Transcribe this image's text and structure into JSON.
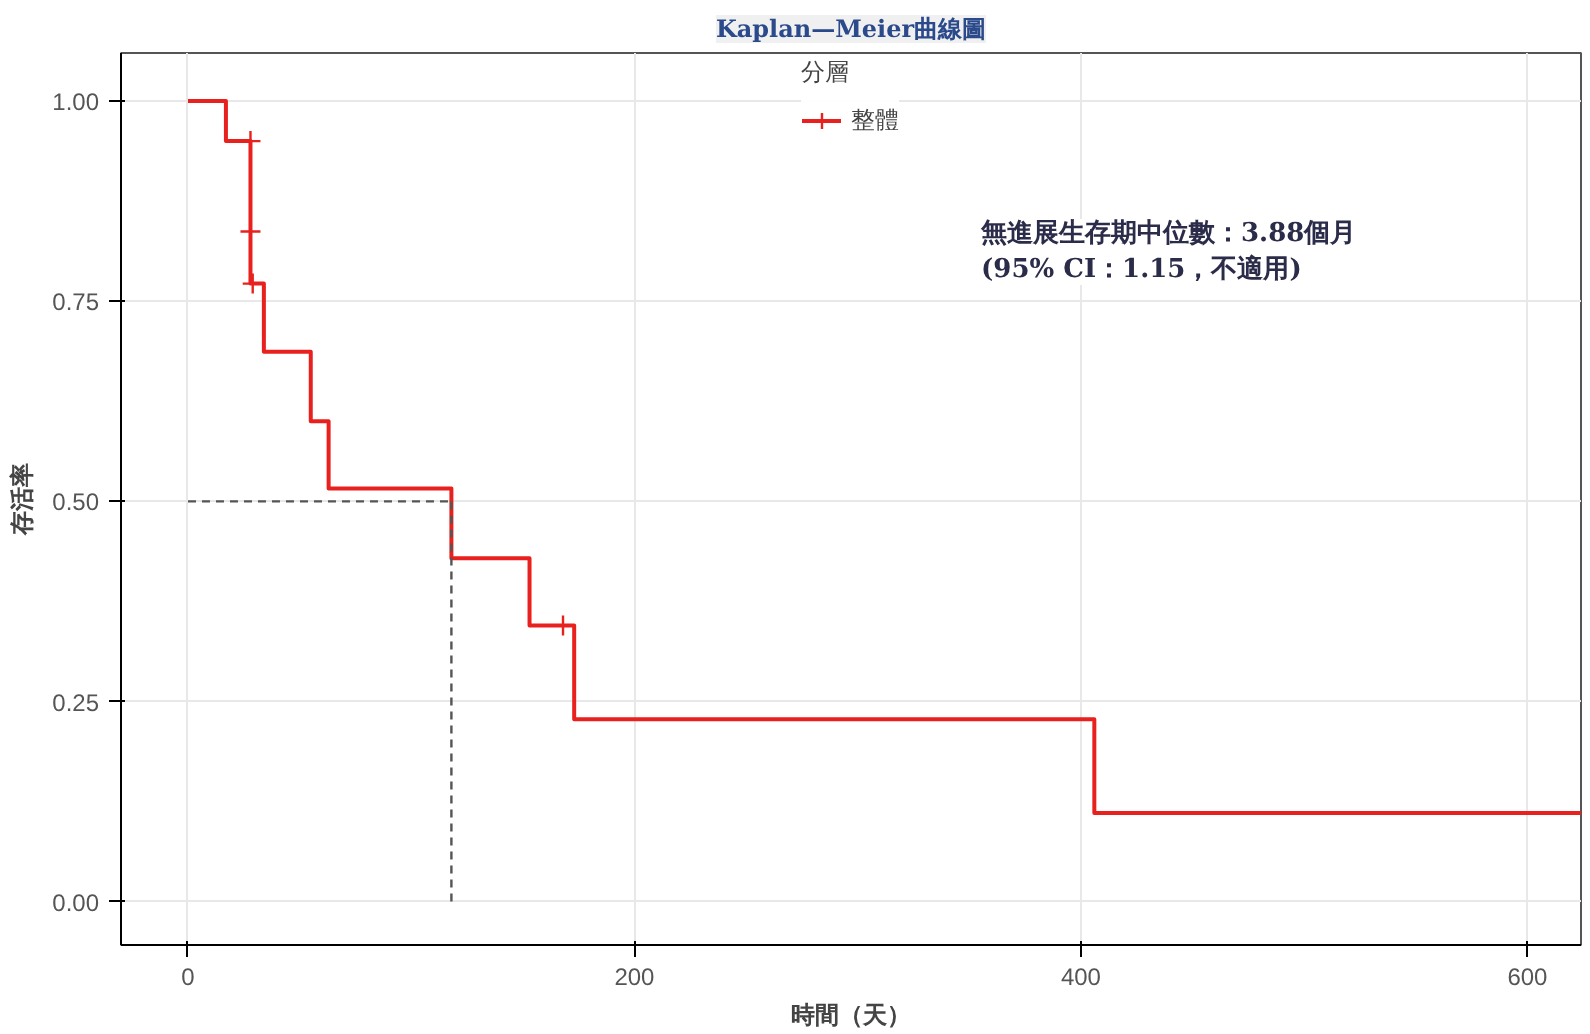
{
  "chart_data": {
    "type": "step",
    "title": "Kaplan—Meier曲線圖",
    "xlabel": "時間（天）",
    "ylabel": "存活率",
    "legend_title": "分層",
    "series": [
      {
        "name": "整體",
        "color": "#e8211f",
        "x": [
          0,
          17,
          28,
          34,
          55,
          63,
          118,
          153,
          173,
          406,
          624
        ],
        "values": [
          1.0,
          0.95,
          0.772,
          0.687,
          0.6,
          0.516,
          0.429,
          0.345,
          0.228,
          0.111,
          0.111
        ]
      },
      {
        "type": "scatter",
        "marker": "cross",
        "color": "#e8211f",
        "x": [
          28,
          28,
          29,
          168
        ],
        "values": [
          0.95,
          0.837,
          0.772,
          0.345
        ]
      },
      {
        "type": "line",
        "line_style": "dashed",
        "color": "#555555",
        "x": [
          0,
          118
        ],
        "values": [
          0.5,
          0.5
        ]
      },
      {
        "type": "line",
        "line_style": "dashed",
        "color": "#555555",
        "x": [
          118,
          118
        ],
        "values": [
          0.5,
          0.0
        ]
      }
    ],
    "annotations": [
      "無進展生存期中位數：3.88個月\n(95% CI：1.15，不適用)"
    ],
    "xlim": [
      -30,
      624
    ],
    "ylim": [
      -0.054,
      1.06
    ],
    "xticks": [
      0,
      200,
      400,
      600
    ],
    "yticks": [
      {
        "value": 0,
        "label": "0.00"
      },
      {
        "value": 0.25,
        "label": "0.25"
      },
      {
        "value": 0.5,
        "label": "0.50"
      },
      {
        "value": 0.75,
        "label": "0.75"
      },
      {
        "value": 1.0,
        "label": "1.00"
      }
    ],
    "grid": true,
    "legend": "top"
  }
}
